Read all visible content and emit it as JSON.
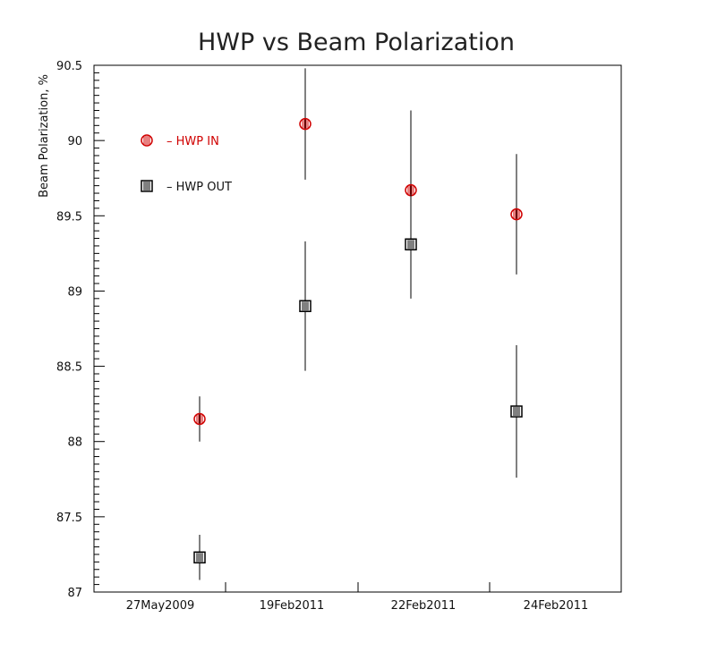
{
  "chart_data": {
    "type": "scatter",
    "title": "HWP vs Beam Polarization",
    "xlabel": "",
    "ylabel": "Beam Polarization, %",
    "categories": [
      "27May2009",
      "19Feb2011",
      "22Feb2011",
      "24Feb2011"
    ],
    "ylim": [
      87,
      90.5
    ],
    "yticks": [
      "87",
      "87.5",
      "88",
      "88.5",
      "89",
      "89.5",
      "90",
      "90.5"
    ],
    "legend_position": "top-left",
    "grid": false,
    "series": [
      {
        "name": "HWP IN",
        "legend_label": "– HWP IN",
        "color": "#d00000",
        "marker": "circle",
        "values": [
          88.15,
          90.11,
          89.67,
          89.51
        ],
        "errors": [
          0.15,
          0.37,
          0.53,
          0.4
        ]
      },
      {
        "name": "HWP OUT",
        "legend_label": "– HWP OUT",
        "color": "#000000",
        "marker": "square",
        "values": [
          87.23,
          88.9,
          89.31,
          88.2
        ],
        "errors": [
          0.15,
          0.43,
          0.36,
          0.44
        ]
      }
    ]
  }
}
